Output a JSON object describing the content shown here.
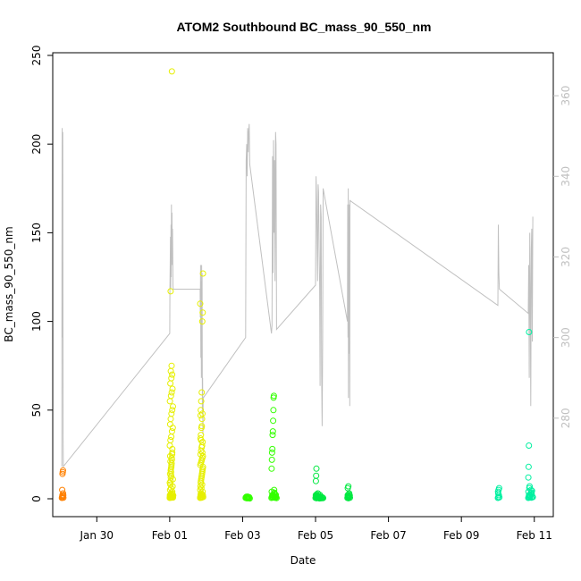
{
  "chart_data": {
    "type": "scatter",
    "title": "ATOM2 Southbound BC_mass_90_550_nm",
    "xlabel": "Date",
    "ylabel": "BC_mass_90_550_nm",
    "ylim": [
      0,
      250
    ],
    "y2lim": [
      260,
      370
    ],
    "xlim": [
      "2017-01-28T19:00",
      "2017-02-11T12:30"
    ],
    "x_ticks": [
      {
        "x": "2017-01-30T00:00",
        "label": "Jan 30"
      },
      {
        "x": "2017-02-01T00:00",
        "label": "Feb 01"
      },
      {
        "x": "2017-02-03T00:00",
        "label": "Feb 03"
      },
      {
        "x": "2017-02-05T00:00",
        "label": "Feb 05"
      },
      {
        "x": "2017-02-07T00:00",
        "label": "Feb 07"
      },
      {
        "x": "2017-02-09T00:00",
        "label": "Feb 09"
      },
      {
        "x": "2017-02-11T00:00",
        "label": "Feb 11"
      }
    ],
    "y_ticks": [
      0,
      50,
      100,
      150,
      200,
      250
    ],
    "y2_ticks": [
      280,
      300,
      320,
      340,
      360
    ],
    "grid": false,
    "legend": "none",
    "colors": {
      "orange": "#ff8000",
      "yellow": "#e6ef00",
      "green": "#33ff00",
      "bright_green": "#00e840",
      "teal": "#00f0a0",
      "secondary_line": "#c0c0c0"
    },
    "series": [
      {
        "color": "#ff8000",
        "x": [
          "2017-01-29T01:00",
          "2017-01-29T01:10",
          "2017-01-29T01:20",
          "2017-01-29T01:30",
          "2017-01-29T01:40",
          "2017-01-29T01:50",
          "2017-01-29T02:00",
          "2017-01-29T01:15",
          "2017-01-29T01:25",
          "2017-01-29T01:35",
          "2017-01-29T01:45",
          "2017-01-29T01:55"
        ],
        "y": [
          0.5,
          1,
          2,
          0.8,
          1.5,
          3,
          0.6,
          5,
          14,
          15,
          16,
          2
        ]
      },
      {
        "color": "#e6ef00",
        "x": [
          "2017-02-01T00:00",
          "2017-02-01T00:10",
          "2017-02-01T00:20",
          "2017-02-01T00:30",
          "2017-02-01T00:40",
          "2017-02-01T00:50",
          "2017-02-01T01:00",
          "2017-02-01T01:10",
          "2017-02-01T01:20",
          "2017-02-01T01:30",
          "2017-02-01T01:40",
          "2017-02-01T01:50",
          "2017-02-01T02:00",
          "2017-02-01T02:10",
          "2017-02-01T02:20",
          "2017-02-01T00:15",
          "2017-02-01T00:25",
          "2017-02-01T00:35",
          "2017-02-01T00:45",
          "2017-02-01T00:55",
          "2017-02-01T01:05",
          "2017-02-01T01:15",
          "2017-02-01T01:25",
          "2017-02-01T01:35",
          "2017-02-01T01:45",
          "2017-02-01T00:05",
          "2017-02-01T00:30",
          "2017-02-01T01:00",
          "2017-02-01T01:30",
          "2017-02-01T02:00",
          "2017-02-01T00:20",
          "2017-02-01T00:40",
          "2017-02-01T01:10",
          "2017-02-01T01:40",
          "2017-02-01T02:10",
          "2017-02-01T00:10",
          "2017-02-01T00:50",
          "2017-02-01T01:20",
          "2017-02-01T01:50",
          "2017-02-01T00:25",
          "2017-02-01T01:05",
          "2017-02-01T01:35",
          "2017-02-01T00:45",
          "2017-02-01T01:15",
          "2017-02-01T00:35",
          "2017-02-01T01:25",
          "2017-02-01T00:55",
          "2017-02-01T01:45",
          "2017-02-01T00:15",
          "2017-02-01T01:55",
          "2017-02-01T00:05",
          "2017-02-01T02:05",
          "2017-02-01T00:40",
          "2017-02-01T01:10",
          "2017-02-01T00:20",
          "2017-02-01T01:40",
          "2017-02-01T00:30",
          "2017-02-01T01:00",
          "2017-02-01T00:50",
          "2017-02-01T01:20",
          "2017-02-01T00:10",
          "2017-02-01T20:00",
          "2017-02-01T20:10",
          "2017-02-01T20:20",
          "2017-02-01T20:30",
          "2017-02-01T20:40",
          "2017-02-01T20:50",
          "2017-02-01T21:00",
          "2017-02-01T21:10",
          "2017-02-01T21:20",
          "2017-02-01T21:30",
          "2017-02-01T21:40",
          "2017-02-01T21:50",
          "2017-02-01T22:00",
          "2017-02-01T20:05",
          "2017-02-01T20:15",
          "2017-02-01T20:25",
          "2017-02-01T20:35",
          "2017-02-01T20:45",
          "2017-02-01T20:55",
          "2017-02-01T21:05",
          "2017-02-01T21:15",
          "2017-02-01T21:25",
          "2017-02-01T21:35",
          "2017-02-01T21:45",
          "2017-02-01T21:55",
          "2017-02-01T20:10",
          "2017-02-01T20:30",
          "2017-02-01T20:50",
          "2017-02-01T21:10",
          "2017-02-01T21:30",
          "2017-02-01T21:50",
          "2017-02-01T20:20",
          "2017-02-01T20:40",
          "2017-02-01T21:00",
          "2017-02-01T21:20",
          "2017-02-01T21:40",
          "2017-02-01T20:15",
          "2017-02-01T20:35",
          "2017-02-01T20:55",
          "2017-02-01T21:15",
          "2017-02-01T21:35",
          "2017-02-01T20:25",
          "2017-02-01T20:45",
          "2017-02-01T21:05",
          "2017-02-01T21:25",
          "2017-02-01T21:45",
          "2017-02-01T20:05",
          "2017-02-01T21:55",
          "2017-02-01T20:50",
          "2017-02-01T21:20",
          "2017-02-01T20:30",
          "2017-02-01T21:30",
          "2017-02-01T20:40",
          "2017-02-01T21:10",
          "2017-02-01T20:20"
        ],
        "y": [
          0.5,
          1,
          2,
          0.8,
          1.5,
          3,
          0.6,
          2.5,
          1.2,
          0.9,
          4,
          2,
          1,
          0.7,
          1.8,
          5,
          8,
          10,
          12,
          15,
          18,
          20,
          22,
          25,
          28,
          30,
          33,
          35,
          38,
          40,
          42,
          45,
          48,
          50,
          52,
          55,
          58,
          60,
          62,
          65,
          68,
          70,
          72,
          75,
          117,
          241,
          6,
          3,
          14,
          7,
          9,
          11,
          16,
          19,
          24,
          26,
          21,
          13,
          17,
          23,
          2,
          0.5,
          1,
          2,
          0.8,
          1.5,
          3,
          0.6,
          2.5,
          1.2,
          0.9,
          4,
          2,
          1,
          5,
          7,
          9,
          10,
          11,
          12,
          13,
          14,
          15,
          16,
          17,
          18,
          19,
          20,
          21,
          22,
          23,
          24,
          25,
          27,
          29,
          30,
          32,
          34,
          36,
          40,
          45,
          48,
          50,
          55,
          60,
          100,
          105,
          110,
          127,
          6,
          8,
          3,
          26,
          33,
          41,
          47
        ],
        "x_note": ""
      },
      {
        "color": "#33ff00",
        "x": [
          "2017-02-03T02:00",
          "2017-02-03T02:20",
          "2017-02-03T02:40",
          "2017-02-03T03:00",
          "2017-02-03T03:20",
          "2017-02-03T03:40",
          "2017-02-03T04:00",
          "2017-02-03T04:20",
          "2017-02-03T04:40",
          "2017-02-03T02:10",
          "2017-02-03T02:30",
          "2017-02-03T02:50",
          "2017-02-03T03:10",
          "2017-02-03T03:30",
          "2017-02-03T03:50",
          "2017-02-03T04:10",
          "2017-02-03T19:00",
          "2017-02-03T19:20",
          "2017-02-03T19:40",
          "2017-02-03T20:00",
          "2017-02-03T20:20",
          "2017-02-03T20:40",
          "2017-02-03T21:00",
          "2017-02-03T21:20",
          "2017-02-03T21:40",
          "2017-02-03T22:00",
          "2017-02-03T22:20",
          "2017-02-03T19:10",
          "2017-02-03T19:30",
          "2017-02-03T19:50",
          "2017-02-03T20:10",
          "2017-02-03T20:30",
          "2017-02-03T20:50",
          "2017-02-03T21:10",
          "2017-02-03T21:30",
          "2017-02-03T21:50",
          "2017-02-03T19:05",
          "2017-02-03T19:15",
          "2017-02-03T19:25",
          "2017-02-03T19:35",
          "2017-02-03T19:45",
          "2017-02-03T19:55",
          "2017-02-03T20:05",
          "2017-02-03T20:15",
          "2017-02-03T20:25",
          "2017-02-03T20:35",
          "2017-02-03T20:45"
        ],
        "y": [
          0.5,
          1,
          0.3,
          0.8,
          1.2,
          0.6,
          0.4,
          0.9,
          0.2,
          0.7,
          1.1,
          0.5,
          0.3,
          0.8,
          0.6,
          0.4,
          0.5,
          1,
          2,
          0.8,
          1.5,
          3,
          0.6,
          2.5,
          1.2,
          0.9,
          0.4,
          4,
          2,
          1,
          0.7,
          1.8,
          3.5,
          1.3,
          0.6,
          2.2,
          17,
          22,
          26,
          28,
          36,
          38,
          44,
          50,
          57,
          58,
          5
        ]
      },
      {
        "color": "#00e840",
        "x": [
          "2017-02-05T00:00",
          "2017-02-05T00:20",
          "2017-02-05T00:40",
          "2017-02-05T01:00",
          "2017-02-05T01:20",
          "2017-02-05T01:40",
          "2017-02-05T02:00",
          "2017-02-05T02:20",
          "2017-02-05T02:40",
          "2017-02-05T03:00",
          "2017-02-05T03:20",
          "2017-02-05T03:40",
          "2017-02-05T04:00",
          "2017-02-05T04:20",
          "2017-02-05T04:40",
          "2017-02-05T05:00",
          "2017-02-05T00:10",
          "2017-02-05T00:30",
          "2017-02-05T00:50",
          "2017-02-05T01:10",
          "2017-02-05T01:30",
          "2017-02-05T01:50",
          "2017-02-05T02:10",
          "2017-02-05T02:30",
          "2017-02-05T02:50",
          "2017-02-05T03:10",
          "2017-02-05T03:30",
          "2017-02-05T00:15",
          "2017-02-05T00:25",
          "2017-02-05T00:35",
          "2017-02-05T21:00",
          "2017-02-05T21:20",
          "2017-02-05T21:40",
          "2017-02-05T22:00",
          "2017-02-05T22:20",
          "2017-02-05T22:40",
          "2017-02-05T21:10",
          "2017-02-05T21:30",
          "2017-02-05T21:50",
          "2017-02-05T22:10",
          "2017-02-05T22:30",
          "2017-02-05T21:15",
          "2017-02-05T21:35"
        ],
        "y": [
          0.5,
          1,
          0.3,
          0.8,
          1.2,
          0.6,
          0.4,
          0.9,
          0.2,
          0.7,
          1.1,
          0.5,
          0.3,
          0.8,
          0.6,
          0.4,
          2,
          1.5,
          2.5,
          1.8,
          3,
          0.9,
          1.3,
          0.7,
          2.2,
          0.6,
          1.1,
          10,
          13,
          17,
          0.5,
          1,
          0.3,
          0.8,
          1.2,
          0.6,
          2,
          1.5,
          2.5,
          3,
          1.8,
          6,
          7
        ]
      },
      {
        "color": "#00f0a0",
        "x": [
          "2017-02-10T00:00",
          "2017-02-10T00:20",
          "2017-02-10T00:40",
          "2017-02-10T01:00",
          "2017-02-10T00:10",
          "2017-02-10T00:30",
          "2017-02-10T00:50",
          "2017-02-10T00:15",
          "2017-02-10T20:00",
          "2017-02-10T20:20",
          "2017-02-10T20:40",
          "2017-02-10T21:00",
          "2017-02-10T21:20",
          "2017-02-10T21:40",
          "2017-02-10T22:00",
          "2017-02-10T22:20",
          "2017-02-10T22:40",
          "2017-02-10T23:00",
          "2017-02-10T20:10",
          "2017-02-10T20:30",
          "2017-02-10T20:50",
          "2017-02-10T21:10",
          "2017-02-10T21:30",
          "2017-02-10T21:50",
          "2017-02-10T22:10",
          "2017-02-10T22:30",
          "2017-02-10T20:05",
          "2017-02-10T20:15",
          "2017-02-10T20:25",
          "2017-02-10T20:35",
          "2017-02-10T20:45",
          "2017-02-10T20:55"
        ],
        "y": [
          0.5,
          1,
          2,
          0.8,
          4,
          5,
          6,
          3,
          0.5,
          1,
          2,
          0.8,
          1.5,
          3,
          0.6,
          2.5,
          1.2,
          0.9,
          4,
          2,
          1,
          0.7,
          1.8,
          5,
          3.5,
          4.5,
          12,
          18,
          30,
          94,
          6,
          7
        ]
      }
    ],
    "secondary_line": {
      "color": "#c0c0c0",
      "x": [
        "2017-01-29T01:00",
        "2017-01-29T01:05",
        "2017-01-29T01:10",
        "2017-01-29T01:15",
        "2017-01-29T01:20",
        "2017-01-29T01:25",
        "2017-01-29T01:30",
        "2017-01-29T01:35",
        "2017-01-29T01:40",
        "2017-01-29T01:45",
        "2017-01-29T01:50",
        "2017-01-29T01:55",
        "2017-01-29T02:00",
        "2017-02-01T00:00",
        "2017-02-01T00:10",
        "2017-02-01T00:20",
        "2017-02-01T00:30",
        "2017-02-01T00:40",
        "2017-02-01T00:50",
        "2017-02-01T01:00",
        "2017-02-01T01:10",
        "2017-02-01T01:20",
        "2017-02-01T01:30",
        "2017-02-01T01:40",
        "2017-02-01T01:50",
        "2017-02-01T02:00",
        "2017-02-01T02:10",
        "2017-02-01T02:20",
        "2017-02-01T20:00",
        "2017-02-01T20:10",
        "2017-02-01T20:20",
        "2017-02-01T20:30",
        "2017-02-01T20:40",
        "2017-02-01T20:50",
        "2017-02-01T21:00",
        "2017-02-01T21:10",
        "2017-02-01T21:20",
        "2017-02-01T21:30",
        "2017-02-01T21:40",
        "2017-02-01T21:50",
        "2017-02-01T22:00",
        "2017-02-03T02:00",
        "2017-02-03T02:20",
        "2017-02-03T02:40",
        "2017-02-03T03:00",
        "2017-02-03T03:20",
        "2017-02-03T03:40",
        "2017-02-03T04:00",
        "2017-02-03T04:20",
        "2017-02-03T04:40",
        "2017-02-03T19:00",
        "2017-02-03T19:20",
        "2017-02-03T19:40",
        "2017-02-03T20:00",
        "2017-02-03T20:20",
        "2017-02-03T20:40",
        "2017-02-03T21:00",
        "2017-02-03T21:20",
        "2017-02-03T21:40",
        "2017-02-03T22:00",
        "2017-02-03T22:20",
        "2017-02-05T00:00",
        "2017-02-05T00:20",
        "2017-02-05T00:40",
        "2017-02-05T01:00",
        "2017-02-05T01:20",
        "2017-02-05T01:40",
        "2017-02-05T02:00",
        "2017-02-05T02:20",
        "2017-02-05T02:40",
        "2017-02-05T03:00",
        "2017-02-05T03:20",
        "2017-02-05T03:40",
        "2017-02-05T04:00",
        "2017-02-05T04:20",
        "2017-02-05T04:40",
        "2017-02-05T05:00",
        "2017-02-05T21:00",
        "2017-02-05T21:10",
        "2017-02-05T21:20",
        "2017-02-05T21:30",
        "2017-02-05T21:40",
        "2017-02-05T21:50",
        "2017-02-05T22:00",
        "2017-02-05T22:10",
        "2017-02-05T22:20",
        "2017-02-05T22:30",
        "2017-02-05T22:40",
        "2017-02-10T00:00",
        "2017-02-10T00:20",
        "2017-02-10T00:40",
        "2017-02-10T01:00",
        "2017-02-10T20:00",
        "2017-02-10T20:20",
        "2017-02-10T20:40",
        "2017-02-10T21:00",
        "2017-02-10T21:20",
        "2017-02-10T21:40",
        "2017-02-10T22:00",
        "2017-02-10T22:20",
        "2017-02-10T22:40",
        "2017-02-10T23:00"
      ],
      "y": [
        268,
        315,
        350,
        352,
        330,
        345,
        300,
        351,
        340,
        290,
        275,
        270,
        268,
        301,
        312,
        318,
        325,
        312,
        328,
        315,
        333,
        320,
        331,
        318,
        327,
        320,
        313,
        312,
        312,
        305,
        318,
        295,
        314,
        290,
        318,
        300,
        316,
        282,
        290,
        276,
        285,
        300,
        344,
        348,
        340,
        352,
        346,
        351,
        353,
        343,
        301,
        303,
        345,
        316,
        349,
        326,
        344,
        314,
        351,
        348,
        302,
        313,
        340,
        334,
        325,
        314,
        338,
        336,
        322,
        313,
        288,
        333,
        330,
        291,
        278,
        300,
        337,
        304,
        333,
        300,
        337,
        285,
        314,
        333,
        296,
        330,
        283,
        334,
        308,
        328,
        316,
        312,
        306,
        318,
        290,
        326,
        313,
        283,
        322,
        327,
        299,
        330
      ]
    }
  }
}
